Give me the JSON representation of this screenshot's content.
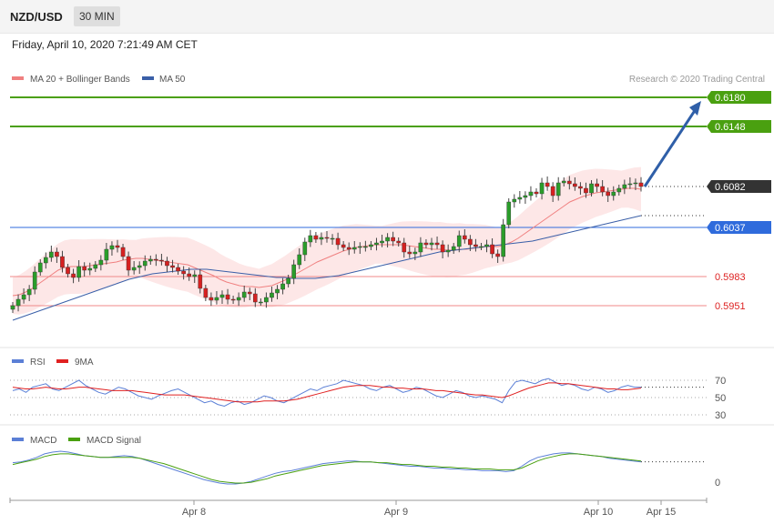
{
  "header": {
    "pair": "NZD/USD",
    "timeframe": "30 MIN"
  },
  "datetime": "Friday, April 10, 2020 7:21:49 AM CET",
  "legend": {
    "ma20_label": "MA 20 + Bollinger Bands",
    "ma50_label": "MA 50",
    "copyright": "Research © 2020 Trading Central",
    "rsi_label": "RSI",
    "rsi_ma_label": "9MA",
    "macd_label": "MACD",
    "macd_signal_label": "MACD Signal"
  },
  "colors": {
    "ma20": "#f08080",
    "ma50": "#3a5fa8",
    "band_fill": "#fde3e3",
    "bull": "#2a9d2a",
    "bear": "#d62020",
    "green_level": "#4aa010",
    "blue_level": "#2f6bdc",
    "red_level": "#f08a8a",
    "current_tag": "#333333",
    "arrow": "#2f5fa8",
    "rsi": "#5b7fd6",
    "rsi_ma": "#e02020",
    "macd": "#5b7fd6",
    "macd_signal": "#4aa010"
  },
  "chart_data": [
    {
      "type": "candlestick",
      "name": "price",
      "x_tick_labels": [
        "Apr 8",
        "Apr 9",
        "Apr 10",
        "Apr 15"
      ],
      "levels": [
        {
          "value": 0.618,
          "label": "0.6180",
          "kind": "resistance"
        },
        {
          "value": 0.6148,
          "label": "0.6148",
          "kind": "resistance"
        },
        {
          "value": 0.6082,
          "label": "0.6082",
          "kind": "current"
        },
        {
          "value": 0.6037,
          "label": "0.6037",
          "kind": "pivot"
        },
        {
          "value": 0.5983,
          "label": "0.5983",
          "kind": "support"
        },
        {
          "value": 0.5951,
          "label": "0.5951",
          "kind": "support"
        }
      ],
      "close": [
        0.5951,
        0.5958,
        0.5963,
        0.5969,
        0.5988,
        0.5998,
        0.6004,
        0.601,
        0.6005,
        0.5993,
        0.5986,
        0.5982,
        0.5994,
        0.599,
        0.5992,
        0.5996,
        0.6001,
        0.6013,
        0.6017,
        0.6015,
        0.6005,
        0.599,
        0.5993,
        0.5995,
        0.6,
        0.6002,
        0.6001,
        0.6,
        0.5995,
        0.5993,
        0.5989,
        0.5986,
        0.5983,
        0.5985,
        0.597,
        0.596,
        0.5957,
        0.596,
        0.5963,
        0.5958,
        0.5957,
        0.596,
        0.5966,
        0.5964,
        0.5955,
        0.5955,
        0.596,
        0.5965,
        0.5969,
        0.5975,
        0.5981,
        0.5996,
        0.6007,
        0.6021,
        0.6028,
        0.6024,
        0.6026,
        0.6025,
        0.6025,
        0.6018,
        0.6015,
        0.6013,
        0.6015,
        0.6016,
        0.6016,
        0.6018,
        0.602,
        0.6022,
        0.6026,
        0.6022,
        0.602,
        0.601,
        0.6008,
        0.601,
        0.602,
        0.6018,
        0.602,
        0.6018,
        0.601,
        0.6012,
        0.6016,
        0.6028,
        0.6024,
        0.6018,
        0.6016,
        0.6016,
        0.6018,
        0.6008,
        0.6005,
        0.604,
        0.6065,
        0.6068,
        0.607,
        0.6072,
        0.6076,
        0.6074,
        0.6086,
        0.6082,
        0.6072,
        0.6086,
        0.6088,
        0.6085,
        0.6082,
        0.608,
        0.6075,
        0.6085,
        0.6082,
        0.6076,
        0.6072,
        0.6076,
        0.608,
        0.6084,
        0.6085,
        0.6086,
        0.6082
      ],
      "ma20": [
        0.5962,
        0.5963,
        0.5966,
        0.597,
        0.5975,
        0.598,
        0.5985,
        0.599,
        0.5993,
        0.5994,
        0.5994,
        0.5994,
        0.5995,
        0.5996,
        0.5997,
        0.5998,
        0.5999,
        0.6001,
        0.6002,
        0.6003,
        0.6003,
        0.6002,
        0.6001,
        0.6,
        0.5999,
        0.5998,
        0.5997,
        0.5996,
        0.5993,
        0.599,
        0.5987,
        0.5984,
        0.598,
        0.5977,
        0.5975,
        0.5973,
        0.5972,
        0.5972,
        0.5971,
        0.5972,
        0.5973,
        0.5976,
        0.5979,
        0.5983,
        0.5987,
        0.5991,
        0.5995,
        0.5999,
        0.6002,
        0.6005,
        0.6008,
        0.6011,
        0.6013,
        0.6015,
        0.6016,
        0.6017,
        0.6018,
        0.6018,
        0.6018,
        0.6018,
        0.6018,
        0.6017,
        0.6016,
        0.6015,
        0.6014,
        0.6013,
        0.6013,
        0.6012,
        0.6012,
        0.6013,
        0.6013,
        0.6014,
        0.6015,
        0.6016,
        0.6016,
        0.6016,
        0.6018,
        0.6021,
        0.6025,
        0.603,
        0.6035,
        0.604,
        0.6045,
        0.605,
        0.6055,
        0.606,
        0.6065,
        0.6068,
        0.6071,
        0.6073,
        0.6075,
        0.6076,
        0.6077,
        0.6078,
        0.6079,
        0.608,
        0.608,
        0.6079
      ],
      "ma50": [
        0.5935,
        0.5938,
        0.5941,
        0.5944,
        0.5947,
        0.595,
        0.5953,
        0.5956,
        0.5959,
        0.5962,
        0.5965,
        0.5968,
        0.5971,
        0.5974,
        0.5977,
        0.598,
        0.5982,
        0.5984,
        0.5986,
        0.5987,
        0.5988,
        0.5989,
        0.599,
        0.5991,
        0.5991,
        0.5991,
        0.599,
        0.5989,
        0.5988,
        0.5987,
        0.5986,
        0.5985,
        0.5984,
        0.5983,
        0.5982,
        0.5982,
        0.5981,
        0.5981,
        0.5981,
        0.5981,
        0.5982,
        0.5983,
        0.5984,
        0.5986,
        0.5988,
        0.599,
        0.5992,
        0.5994,
        0.5996,
        0.5998,
        0.6,
        0.6002,
        0.6004,
        0.6006,
        0.6008,
        0.601,
        0.6011,
        0.6012,
        0.6013,
        0.6014,
        0.6015,
        0.6016,
        0.6017,
        0.6018,
        0.6019,
        0.602,
        0.6021,
        0.6022,
        0.6024,
        0.6026,
        0.6028,
        0.603,
        0.6032,
        0.6034,
        0.6036,
        0.6038,
        0.604,
        0.6042,
        0.6044,
        0.6046,
        0.6048,
        0.605
      ],
      "projection": {
        "from": 0.6082,
        "to": 0.618
      }
    },
    {
      "type": "line",
      "name": "rsi",
      "y_ticks": [
        70,
        50,
        30
      ],
      "rsi": [
        58,
        60,
        56,
        62,
        64,
        66,
        60,
        58,
        62,
        66,
        70,
        64,
        60,
        56,
        54,
        58,
        62,
        60,
        56,
        52,
        50,
        48,
        52,
        55,
        58,
        60,
        56,
        52,
        48,
        44,
        46,
        42,
        40,
        44,
        46,
        42,
        44,
        48,
        52,
        50,
        46,
        44,
        48,
        52,
        56,
        60,
        58,
        62,
        64,
        66,
        70,
        68,
        66,
        64,
        60,
        58,
        62,
        64,
        60,
        56,
        58,
        62,
        60,
        56,
        52,
        50,
        54,
        58,
        56,
        52,
        50,
        52,
        50,
        48,
        44,
        58,
        68,
        70,
        68,
        66,
        70,
        72,
        68,
        64,
        66,
        64,
        60,
        58,
        62,
        60,
        56,
        58,
        62,
        64,
        62,
        62
      ],
      "ma9": [
        62,
        61,
        60,
        60,
        61,
        62,
        61,
        60,
        60,
        61,
        62,
        62,
        61,
        60,
        59,
        58,
        58,
        58,
        58,
        57,
        56,
        55,
        54,
        53,
        53,
        53,
        53,
        52,
        51,
        50,
        49,
        48,
        47,
        46,
        45,
        45,
        45,
        45,
        46,
        46,
        46,
        46,
        47,
        48,
        50,
        52,
        54,
        56,
        58,
        60,
        62,
        63,
        64,
        64,
        64,
        63,
        62,
        62,
        61,
        61,
        60,
        60,
        60,
        59,
        58,
        58,
        57,
        56,
        55,
        54,
        53,
        53,
        52,
        51,
        50,
        52,
        55,
        58,
        61,
        63,
        65,
        67,
        67,
        66,
        66,
        65,
        64,
        63,
        62,
        61,
        60,
        60,
        59,
        59,
        60,
        61
      ]
    },
    {
      "type": "line",
      "name": "macd",
      "y_ticks": [
        0
      ],
      "macd": [
        12,
        13,
        15,
        18,
        22,
        24,
        25,
        24,
        22,
        20,
        19,
        18,
        18,
        19,
        20,
        19,
        17,
        14,
        11,
        8,
        5,
        2,
        -1,
        -4,
        -7,
        -9,
        -11,
        -12,
        -12,
        -11,
        -9,
        -6,
        -3,
        0,
        2,
        3,
        5,
        7,
        9,
        11,
        12,
        13,
        14,
        14,
        13,
        13,
        12,
        11,
        10,
        9,
        8,
        8,
        7,
        6,
        6,
        5,
        5,
        4,
        4,
        3,
        3,
        3,
        2,
        3,
        8,
        14,
        18,
        20,
        22,
        23,
        23,
        22,
        21,
        20,
        19,
        17,
        16,
        15,
        14,
        13
      ],
      "signal": [
        10,
        12,
        14,
        16,
        19,
        21,
        22,
        22,
        21,
        20,
        19,
        18,
        18,
        18,
        18,
        18,
        17,
        15,
        13,
        11,
        8,
        5,
        2,
        -1,
        -4,
        -7,
        -9,
        -10,
        -11,
        -11,
        -10,
        -8,
        -6,
        -3,
        -1,
        1,
        3,
        5,
        7,
        9,
        10,
        11,
        12,
        13,
        13,
        13,
        12,
        12,
        11,
        10,
        10,
        9,
        8,
        8,
        7,
        7,
        6,
        6,
        5,
        5,
        5,
        4,
        4,
        4,
        6,
        10,
        14,
        17,
        19,
        21,
        22,
        22,
        21,
        20,
        19,
        18,
        17,
        16,
        15,
        14
      ]
    }
  ]
}
